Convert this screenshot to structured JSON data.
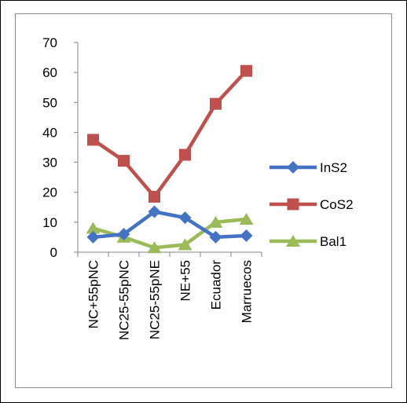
{
  "chart_data": {
    "type": "line",
    "title": "",
    "xlabel": "",
    "ylabel": "",
    "categories": [
      "NC+55pNC",
      "NC25-55pNC",
      "NC25-55pNE",
      "NE+55",
      "Ecuador",
      "Marruecos"
    ],
    "ylim": [
      0,
      70
    ],
    "yticks": [
      0,
      10,
      20,
      30,
      40,
      50,
      60,
      70
    ],
    "grid": false,
    "legend_position": "right",
    "series": [
      {
        "name": "InS2",
        "color": "#4472C4",
        "marker": "diamond",
        "values": [
          5,
          6,
          13.5,
          11.5,
          5,
          5.5
        ]
      },
      {
        "name": "CoS2",
        "color": "#C0504D",
        "marker": "square",
        "values": [
          37.5,
          30.5,
          18.5,
          32.5,
          49.5,
          60.5
        ]
      },
      {
        "name": "Bal1",
        "color": "#9BBB59",
        "marker": "triangle",
        "values": [
          8,
          5,
          1.5,
          2.5,
          10,
          11
        ]
      }
    ]
  }
}
